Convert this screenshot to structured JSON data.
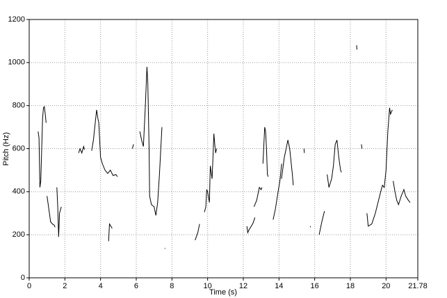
{
  "chart_data": {
    "type": "line",
    "x_label": "Time (s)",
    "y_label": "Pitch (Hz)",
    "xlim": [
      0,
      21.78
    ],
    "ylim": [
      0,
      1200
    ],
    "xticks": [
      0,
      2,
      4,
      6,
      8,
      10,
      12,
      14,
      16,
      18,
      20,
      21.78
    ],
    "yticks": [
      0,
      200,
      400,
      600,
      800,
      1000,
      1200
    ],
    "grid": true,
    "color": "#000000",
    "x": [
      0.5,
      0.55,
      0.6,
      0.65,
      0.7,
      0.75,
      0.8,
      0.85,
      0.9,
      0.95,
      null,
      1.0,
      1.1,
      1.2,
      1.3,
      1.4,
      1.45,
      null,
      1.55,
      1.6,
      1.65,
      1.7,
      1.8,
      null,
      2.77,
      2.85,
      2.95,
      3.05,
      3.1,
      null,
      3.5,
      3.6,
      3.7,
      3.78,
      3.85,
      3.9,
      4.0,
      4.1,
      4.25,
      4.4,
      4.55,
      4.7,
      4.85,
      4.95,
      null,
      4.45,
      4.5,
      4.65,
      null,
      5.78,
      5.85,
      null,
      6.2,
      6.3,
      6.4,
      6.5,
      6.6,
      6.65,
      6.72,
      6.75,
      6.85,
      7.0,
      7.1,
      7.2,
      7.3,
      7.44,
      null,
      7.6,
      7.62,
      null,
      9.3,
      9.45,
      9.55,
      null,
      9.82,
      9.9,
      9.95,
      10.0,
      10.1,
      10.15,
      10.25,
      10.3,
      10.35,
      10.4,
      10.45,
      10.5,
      null,
      12.2,
      12.25,
      12.3,
      12.45,
      12.55,
      12.65,
      null,
      12.6,
      12.75,
      12.9,
      13.0,
      13.05,
      null,
      13.1,
      13.2,
      13.25,
      13.3,
      13.35,
      13.4,
      null,
      13.67,
      13.8,
      13.95,
      14.05,
      14.15,
      null,
      14.14,
      14.3,
      14.5,
      14.6,
      14.75,
      14.8,
      null,
      15.4,
      15.42,
      null,
      15.75,
      15.77,
      null,
      16.25,
      16.4,
      16.55,
      null,
      16.7,
      16.8,
      16.95,
      17.05,
      17.15,
      17.25,
      17.35,
      17.45,
      17.5,
      null,
      18.35,
      18.37,
      null,
      18.62,
      18.65,
      null,
      18.93,
      19.0,
      19.2,
      19.4,
      19.55,
      19.7,
      19.8,
      19.9,
      20.0,
      20.1,
      20.2,
      20.25,
      20.35,
      null,
      20.4,
      20.5,
      20.6,
      20.7,
      20.85,
      21.0,
      21.1,
      21.25,
      21.35
    ],
    "values": [
      680,
      650,
      420,
      450,
      600,
      740,
      790,
      795,
      760,
      720,
      null,
      380,
      320,
      260,
      250,
      245,
      235,
      null,
      420,
      330,
      190,
      300,
      330,
      null,
      580,
      600,
      580,
      610,
      595,
      null,
      590,
      640,
      720,
      780,
      740,
      720,
      560,
      530,
      500,
      485,
      500,
      475,
      480,
      470,
      null,
      170,
      250,
      230,
      null,
      600,
      620,
      null,
      680,
      640,
      610,
      780,
      980,
      900,
      600,
      380,
      340,
      330,
      290,
      350,
      480,
      700,
      null,
      135,
      138,
      null,
      175,
      210,
      250,
      null,
      305,
      330,
      410,
      400,
      350,
      520,
      460,
      560,
      670,
      620,
      580,
      600,
      null,
      240,
      210,
      220,
      240,
      255,
      280,
      null,
      330,
      360,
      420,
      410,
      420,
      null,
      530,
      700,
      680,
      600,
      480,
      470,
      null,
      270,
      320,
      400,
      450,
      530,
      null,
      460,
      560,
      640,
      600,
      480,
      430,
      null,
      600,
      580,
      null,
      240,
      235,
      null,
      200,
      260,
      310,
      null,
      480,
      420,
      460,
      520,
      620,
      640,
      560,
      500,
      490,
      null,
      1080,
      1060,
      null,
      620,
      600,
      null,
      300,
      240,
      250,
      300,
      350,
      400,
      430,
      420,
      500,
      680,
      790,
      760,
      780,
      null,
      450,
      400,
      360,
      340,
      380,
      410,
      380,
      360,
      350
    ]
  }
}
